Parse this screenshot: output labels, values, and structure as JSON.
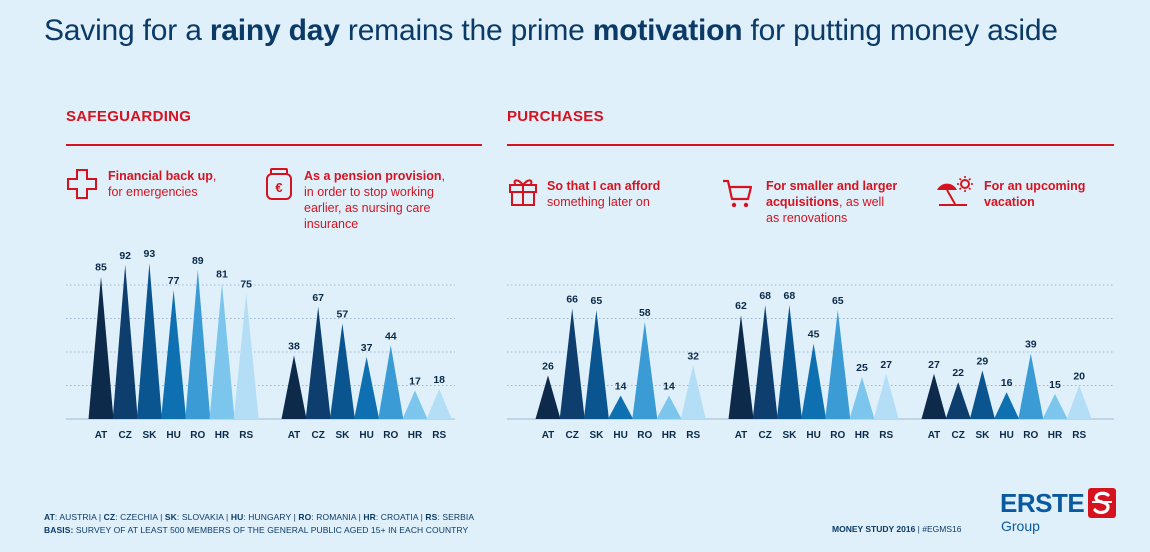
{
  "title": {
    "part1": "Saving for a ",
    "bold1": "rainy day",
    "part2": " remains the prime ",
    "bold2": "motivation",
    "part3": " for putting money aside"
  },
  "sections": {
    "safeguarding": "SAFEGUARDING",
    "purchases": "PURCHASES"
  },
  "groups": {
    "backup": {
      "strong": "Financial back up",
      "rest": ",",
      "line2": "for emergencies",
      "icon": "medical-cross-icon"
    },
    "pension": {
      "strong": "As a pension provision",
      "rest": ",",
      "line2": "in order to stop working",
      "line3": "earlier, as nursing care",
      "line4": "insurance",
      "icon": "euro-jar-icon"
    },
    "afford": {
      "strong": "So that I can afford",
      "line2": "something later on",
      "icon": "gift-icon"
    },
    "acquisitions": {
      "strong": "For smaller and larger",
      "line2strong": "acquisitions",
      "line2rest": ", as well",
      "line3": "as renovations",
      "icon": "shopping-cart-icon"
    },
    "vacation": {
      "strong": "For an upcoming",
      "line2strong": "vacation",
      "icon": "beach-sun-icon"
    }
  },
  "colors": {
    "AT": "#0d2a4a",
    "CZ": "#0e3e6e",
    "SK": "#0a5590",
    "HU": "#0e70b0",
    "RO": "#3a9bd5",
    "HR": "#7cc6ee",
    "RS": "#b3def6",
    "accent": "#d7121f",
    "text": "#0c3a66"
  },
  "chart_data": [
    {
      "type": "bar",
      "title": "Financial back up, for emergencies",
      "categories": [
        "AT",
        "CZ",
        "SK",
        "HU",
        "RO",
        "HR",
        "RS"
      ],
      "values": [
        85,
        92,
        93,
        77,
        89,
        81,
        75
      ]
    },
    {
      "type": "bar",
      "title": "As a pension provision, in order to stop working earlier, as nursing care insurance",
      "categories": [
        "AT",
        "CZ",
        "SK",
        "HU",
        "RO",
        "HR",
        "RS"
      ],
      "values": [
        38,
        67,
        57,
        37,
        44,
        17,
        18
      ]
    },
    {
      "type": "bar",
      "title": "So that I can afford something later on",
      "categories": [
        "AT",
        "CZ",
        "SK",
        "HU",
        "RO",
        "HR",
        "RS"
      ],
      "values": [
        26,
        66,
        65,
        14,
        58,
        14,
        32
      ]
    },
    {
      "type": "bar",
      "title": "For smaller and larger acquisitions, as well as renovations",
      "categories": [
        "AT",
        "CZ",
        "SK",
        "HU",
        "RO",
        "HR",
        "RS"
      ],
      "values": [
        62,
        68,
        68,
        45,
        65,
        25,
        27
      ]
    },
    {
      "type": "bar",
      "title": "For an upcoming vacation",
      "categories": [
        "AT",
        "CZ",
        "SK",
        "HU",
        "RO",
        "HR",
        "RS"
      ],
      "values": [
        27,
        22,
        29,
        16,
        39,
        15,
        20
      ]
    }
  ],
  "footnotes": {
    "legend": [
      {
        "code": "AT",
        "sep": ": ",
        "name": "AUSTRIA"
      },
      {
        "code": "CZ",
        "sep": ": ",
        "name": "CZECHIA"
      },
      {
        "code": "SK",
        "sep": ": ",
        "name": "SLOVAKIA"
      },
      {
        "code": "HU",
        "sep": ": ",
        "name": "HUNGARY"
      },
      {
        "code": "RO",
        "sep": ": ",
        "name": "ROMANIA"
      },
      {
        "code": "HR",
        "sep": ": ",
        "name": "CROATIA"
      },
      {
        "code": "RS",
        "sep": ": ",
        "name": "SERBIA"
      }
    ],
    "basis_label": "BASIS:",
    "basis_text": " SURVEY OF AT LEAST 500 MEMBERS OF THE GENERAL PUBLIC AGED 15+ IN EACH COUNTRY"
  },
  "study": {
    "bold": "MONEY STUDY 2016",
    "rest": " | #EGMS16"
  },
  "logo": {
    "name": "ERSTE",
    "sub": "Group"
  }
}
